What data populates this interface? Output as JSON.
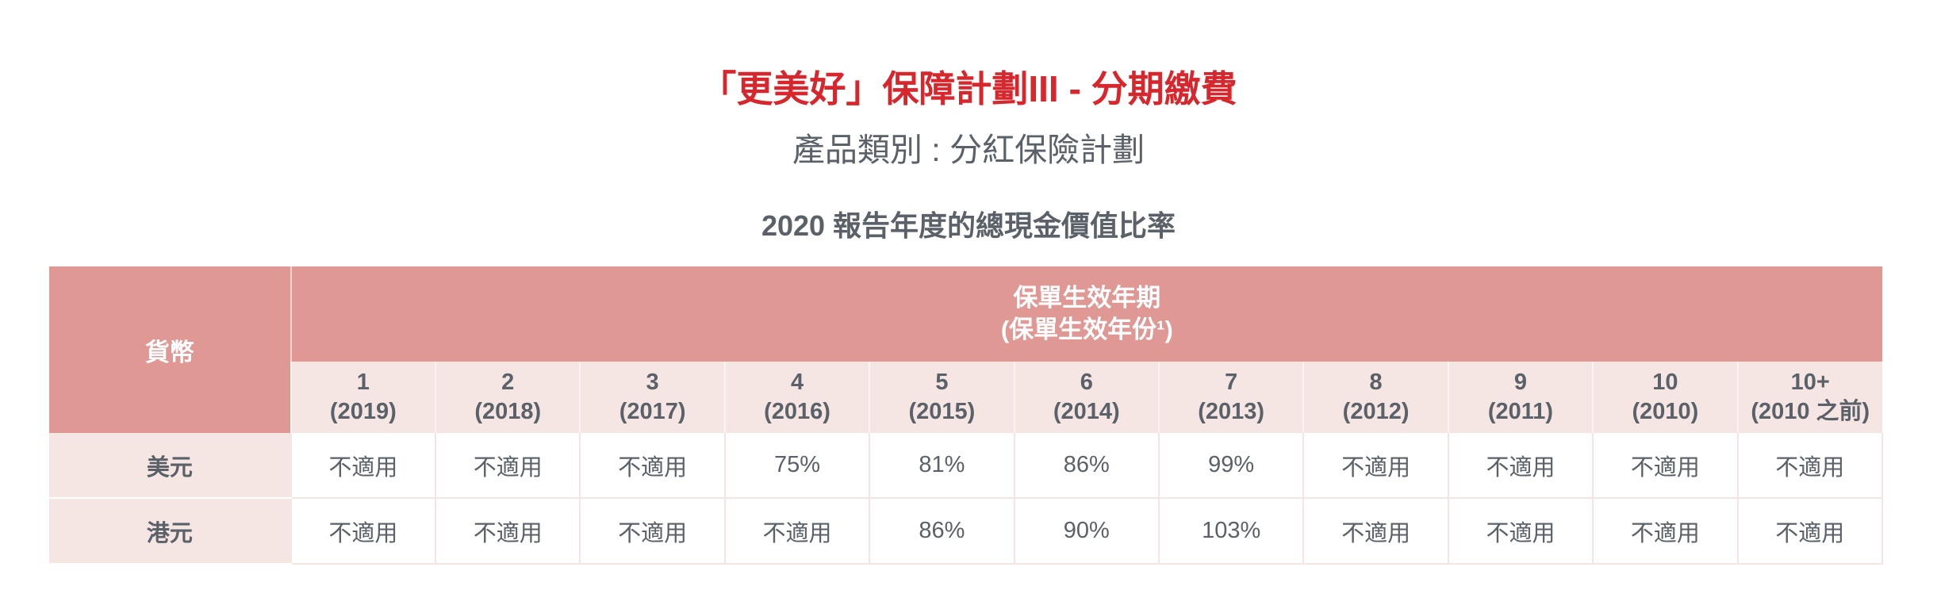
{
  "header": {
    "title": "「更美好」保障計劃III - 分期繳費",
    "subtitle": "產品類別 : 分紅保險計劃",
    "table_title": "2020 報告年度的總現金價值比率"
  },
  "table": {
    "currency_header": "貨幣",
    "policy_header_line1": "保單生效年期",
    "policy_header_line2": "(保單生效年份¹)",
    "columns": [
      {
        "year": "1",
        "sub": "(2019)"
      },
      {
        "year": "2",
        "sub": "(2018)"
      },
      {
        "year": "3",
        "sub": "(2017)"
      },
      {
        "year": "4",
        "sub": "(2016)"
      },
      {
        "year": "5",
        "sub": "(2015)"
      },
      {
        "year": "6",
        "sub": "(2014)"
      },
      {
        "year": "7",
        "sub": "(2013)"
      },
      {
        "year": "8",
        "sub": "(2012)"
      },
      {
        "year": "9",
        "sub": "(2011)"
      },
      {
        "year": "10",
        "sub": "(2010)"
      },
      {
        "year": "10+",
        "sub": "(2010 之前)"
      }
    ],
    "rows": [
      {
        "currency": "美元",
        "values": [
          "不適用",
          "不適用",
          "不適用",
          "75%",
          "81%",
          "86%",
          "99%",
          "不適用",
          "不適用",
          "不適用",
          "不適用"
        ]
      },
      {
        "currency": "港元",
        "values": [
          "不適用",
          "不適用",
          "不適用",
          "不適用",
          "86%",
          "90%",
          "103%",
          "不適用",
          "不適用",
          "不適用",
          "不適用"
        ]
      }
    ]
  },
  "colors": {
    "title_red": "#d8262d",
    "header_pink": "#e09894",
    "light_pink": "#f5e6e4",
    "text_gray": "#5a6168"
  }
}
